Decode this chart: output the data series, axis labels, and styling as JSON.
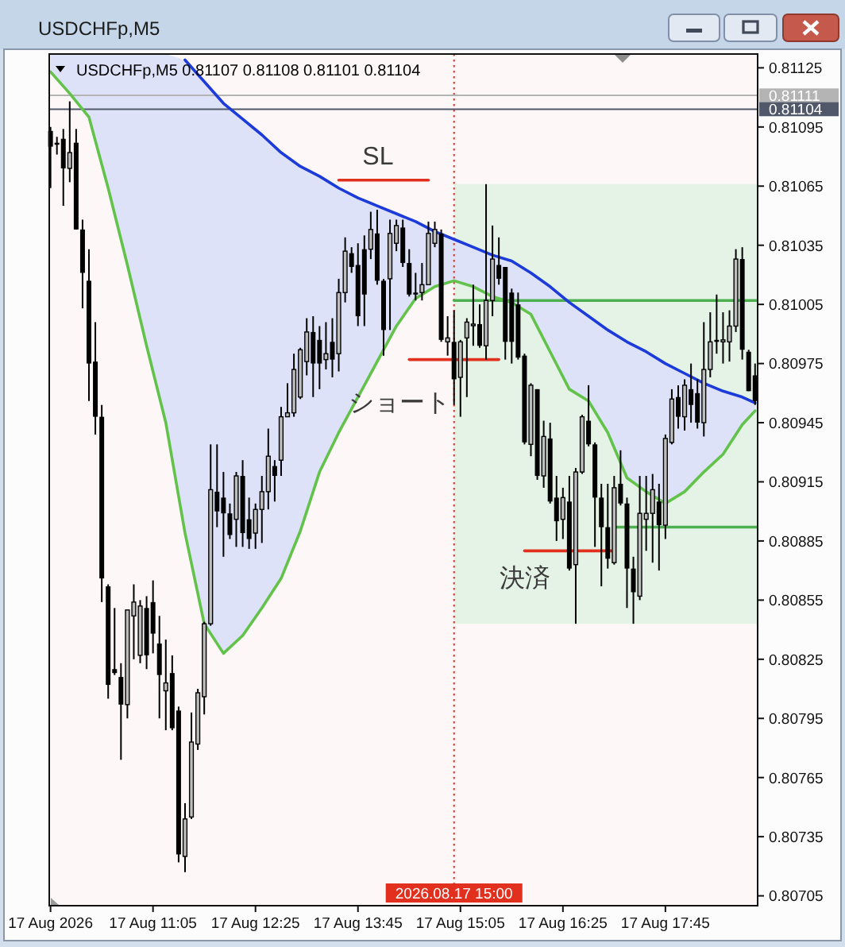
{
  "chart_data": {
    "type": "candlestick",
    "title": "USDCHFp,M5",
    "subtitle": "USDCHFp,M5 0.81107 0.81108 0.81101 0.81104",
    "x": [
      "2026-08-17T09:45",
      "2026-08-17T09:50",
      "2026-08-17T09:55",
      "2026-08-17T10:00",
      "2026-08-17T10:05",
      "2026-08-17T10:10",
      "2026-08-17T10:15",
      "2026-08-17T10:20",
      "2026-08-17T10:25",
      "2026-08-17T10:30",
      "2026-08-17T10:35",
      "2026-08-17T10:40",
      "2026-08-17T10:45",
      "2026-08-17T10:50",
      "2026-08-17T10:55",
      "2026-08-17T11:00",
      "2026-08-17T11:05",
      "2026-08-17T11:10",
      "2026-08-17T11:15",
      "2026-08-17T11:20",
      "2026-08-17T11:25",
      "2026-08-17T11:30",
      "2026-08-17T11:35",
      "2026-08-17T11:40",
      "2026-08-17T11:45",
      "2026-08-17T11:50",
      "2026-08-17T11:55",
      "2026-08-17T12:00",
      "2026-08-17T12:05",
      "2026-08-17T12:10",
      "2026-08-17T12:15",
      "2026-08-17T12:20",
      "2026-08-17T12:25",
      "2026-08-17T12:30",
      "2026-08-17T12:35",
      "2026-08-17T12:40",
      "2026-08-17T12:45",
      "2026-08-17T12:50",
      "2026-08-17T12:55",
      "2026-08-17T13:00",
      "2026-08-17T13:05",
      "2026-08-17T13:10",
      "2026-08-17T13:15",
      "2026-08-17T13:20",
      "2026-08-17T13:25",
      "2026-08-17T13:30",
      "2026-08-17T13:35",
      "2026-08-17T13:40",
      "2026-08-17T13:45",
      "2026-08-17T13:50",
      "2026-08-17T13:55",
      "2026-08-17T14:00",
      "2026-08-17T14:05",
      "2026-08-17T14:10",
      "2026-08-17T14:15",
      "2026-08-17T14:20",
      "2026-08-17T14:25",
      "2026-08-17T14:30",
      "2026-08-17T14:35",
      "2026-08-17T14:40",
      "2026-08-17T14:45",
      "2026-08-17T14:50",
      "2026-08-17T14:55",
      "2026-08-17T15:00",
      "2026-08-17T15:05",
      "2026-08-17T15:10",
      "2026-08-17T15:15",
      "2026-08-17T15:20",
      "2026-08-17T15:25",
      "2026-08-17T15:30",
      "2026-08-17T15:35",
      "2026-08-17T15:40",
      "2026-08-17T15:45",
      "2026-08-17T15:50",
      "2026-08-17T15:55",
      "2026-08-17T16:00",
      "2026-08-17T16:05",
      "2026-08-17T16:10",
      "2026-08-17T16:15",
      "2026-08-17T16:20",
      "2026-08-17T16:25",
      "2026-08-17T16:30",
      "2026-08-17T16:35",
      "2026-08-17T16:40",
      "2026-08-17T16:45",
      "2026-08-17T16:50",
      "2026-08-17T16:55",
      "2026-08-17T17:00",
      "2026-08-17T17:05",
      "2026-08-17T17:10",
      "2026-08-17T17:15",
      "2026-08-17T17:20",
      "2026-08-17T17:25",
      "2026-08-17T17:30",
      "2026-08-17T17:35",
      "2026-08-17T17:40",
      "2026-08-17T17:45",
      "2026-08-17T17:50",
      "2026-08-17T17:55",
      "2026-08-17T18:00",
      "2026-08-17T18:05",
      "2026-08-17T18:10",
      "2026-08-17T18:15",
      "2026-08-17T18:20",
      "2026-08-17T18:25",
      "2026-08-17T18:30",
      "2026-08-17T18:35",
      "2026-08-17T18:40",
      "2026-08-17T18:45",
      "2026-08-17T18:50",
      "2026-08-17T18:55"
    ],
    "ohlc": [
      [
        0.81093,
        0.81095,
        0.81064,
        0.81085
      ],
      [
        0.81087,
        0.8109,
        0.81081,
        0.81086
      ],
      [
        0.81089,
        0.81094,
        0.81055,
        0.81074
      ],
      [
        0.81074,
        0.81108,
        0.81067,
        0.81082
      ],
      [
        0.81087,
        0.81094,
        0.81043,
        0.81043
      ],
      [
        0.81043,
        0.81048,
        0.81003,
        0.81021
      ],
      [
        0.81017,
        0.81033,
        0.80956,
        0.80975
      ],
      [
        0.80976,
        0.80996,
        0.80939,
        0.80948
      ],
      [
        0.80948,
        0.80954,
        0.80854,
        0.80866
      ],
      [
        0.80862,
        0.80863,
        0.80805,
        0.80812
      ],
      [
        0.8082,
        0.80851,
        0.80817,
        0.80818
      ],
      [
        0.80816,
        0.80823,
        0.80774,
        0.80802
      ],
      [
        0.80802,
        0.8085,
        0.80795,
        0.8085
      ],
      [
        0.80847,
        0.80863,
        0.80825,
        0.80854
      ],
      [
        0.80827,
        0.80855,
        0.80823,
        0.80852
      ],
      [
        0.80851,
        0.80857,
        0.8082,
        0.80827
      ],
      [
        0.80854,
        0.80865,
        0.80828,
        0.80838
      ],
      [
        0.80833,
        0.80847,
        0.80795,
        0.80817
      ],
      [
        0.80809,
        0.80835,
        0.80789,
        0.80813
      ],
      [
        0.80818,
        0.80827,
        0.80789,
        0.8079
      ],
      [
        0.80799,
        0.80801,
        0.80722,
        0.80726
      ],
      [
        0.80725,
        0.80752,
        0.80717,
        0.80744
      ],
      [
        0.80745,
        0.80798,
        0.80744,
        0.80783
      ],
      [
        0.80782,
        0.8081,
        0.80779,
        0.80808
      ],
      [
        0.80806,
        0.80844,
        0.80797,
        0.80843
      ],
      [
        0.80843,
        0.80934,
        0.80842,
        0.80911
      ],
      [
        0.8091,
        0.80934,
        0.80892,
        0.809
      ],
      [
        0.80907,
        0.8092,
        0.80877,
        0.80899
      ],
      [
        0.80899,
        0.80904,
        0.80886,
        0.80888
      ],
      [
        0.80896,
        0.8092,
        0.80882,
        0.80918
      ],
      [
        0.80918,
        0.80926,
        0.80882,
        0.80889
      ],
      [
        0.80896,
        0.80907,
        0.80881,
        0.80886
      ],
      [
        0.80889,
        0.80904,
        0.80881,
        0.80901
      ],
      [
        0.80901,
        0.80918,
        0.80884,
        0.8091
      ],
      [
        0.8091,
        0.80942,
        0.80901,
        0.80928
      ],
      [
        0.80923,
        0.80926,
        0.80905,
        0.80918
      ],
      [
        0.80926,
        0.80953,
        0.80918,
        0.80948
      ],
      [
        0.80948,
        0.80965,
        0.80948,
        0.8095
      ],
      [
        0.8095,
        0.8098,
        0.80948,
        0.80972
      ],
      [
        0.80958,
        0.80983,
        0.80957,
        0.80982
      ],
      [
        0.80976,
        0.80998,
        0.80969,
        0.80991
      ],
      [
        0.80991,
        0.80999,
        0.80958,
        0.80975
      ],
      [
        0.80987,
        0.80994,
        0.80962,
        0.80975
      ],
      [
        0.80977,
        0.80996,
        0.80972,
        0.8098
      ],
      [
        0.80986,
        0.80998,
        0.80968,
        0.80977
      ],
      [
        0.8098,
        0.81018,
        0.80971,
        0.81011
      ],
      [
        0.81011,
        0.81039,
        0.81006,
        0.81032
      ],
      [
        0.81031,
        0.81034,
        0.81021,
        0.81024
      ],
      [
        0.81025,
        0.81036,
        0.80994,
        0.80999
      ],
      [
        0.81033,
        0.8104,
        0.80994,
        0.8101
      ],
      [
        0.81033,
        0.81052,
        0.81028,
        0.81043
      ],
      [
        0.81041,
        0.81053,
        0.81015,
        0.81017
      ],
      [
        0.81017,
        0.81018,
        0.80979,
        0.80992
      ],
      [
        0.81018,
        0.81048,
        0.80992,
        0.81041
      ],
      [
        0.81036,
        0.81048,
        0.81032,
        0.81045
      ],
      [
        0.81044,
        0.81048,
        0.81024,
        0.81026
      ],
      [
        0.81026,
        0.81033,
        0.81009,
        0.8101
      ],
      [
        0.81011,
        0.81021,
        0.81007,
        0.8101
      ],
      [
        0.81011,
        0.81026,
        0.81007,
        0.81015
      ],
      [
        0.81015,
        0.81047,
        0.81015,
        0.81041
      ],
      [
        0.81036,
        0.81047,
        0.81034,
        0.81043
      ],
      [
        0.81041,
        0.81043,
        0.80986,
        0.80987
      ],
      [
        0.80986,
        0.80999,
        0.80979,
        0.80988
      ],
      [
        0.80986,
        0.81002,
        0.80954,
        0.80967
      ],
      [
        0.80968,
        0.80987,
        0.80948,
        0.80986
      ],
      [
        0.80988,
        0.80998,
        0.80958,
        0.80996
      ],
      [
        0.80995,
        0.81015,
        0.80984,
        0.80995
      ],
      [
        0.80995,
        0.81005,
        0.80983,
        0.80984
      ],
      [
        0.80984,
        0.81066,
        0.80977,
        0.81007
      ],
      [
        0.81007,
        0.81045,
        0.80999,
        0.81028
      ],
      [
        0.81025,
        0.81039,
        0.81015,
        0.81018
      ],
      [
        0.81024,
        0.81024,
        0.80977,
        0.80986
      ],
      [
        0.81011,
        0.81013,
        0.80975,
        0.80986
      ],
      [
        0.81005,
        0.81011,
        0.80977,
        0.80978
      ],
      [
        0.80979,
        0.8098,
        0.80934,
        0.80935
      ],
      [
        0.80934,
        0.80965,
        0.80928,
        0.80964
      ],
      [
        0.80962,
        0.80962,
        0.80916,
        0.80918
      ],
      [
        0.80918,
        0.80946,
        0.80912,
        0.80938
      ],
      [
        0.80937,
        0.80945,
        0.80904,
        0.80905
      ],
      [
        0.80907,
        0.80918,
        0.80885,
        0.80895
      ],
      [
        0.80896,
        0.80912,
        0.80886,
        0.80907
      ],
      [
        0.80905,
        0.80918,
        0.8087,
        0.80871
      ],
      [
        0.80873,
        0.80922,
        0.80843,
        0.8092
      ],
      [
        0.8092,
        0.80949,
        0.80919,
        0.80948
      ],
      [
        0.80946,
        0.80964,
        0.80933,
        0.80934
      ],
      [
        0.80934,
        0.80935,
        0.80882,
        0.80907
      ],
      [
        0.80907,
        0.80914,
        0.80862,
        0.80892
      ],
      [
        0.80892,
        0.80914,
        0.80871,
        0.80876
      ],
      [
        0.80874,
        0.80918,
        0.80873,
        0.80912
      ],
      [
        0.80914,
        0.80931,
        0.80903,
        0.80904
      ],
      [
        0.80904,
        0.80907,
        0.80851,
        0.80871
      ],
      [
        0.80871,
        0.80877,
        0.80843,
        0.80859
      ],
      [
        0.80857,
        0.80918,
        0.80855,
        0.80899
      ],
      [
        0.80896,
        0.80918,
        0.8088,
        0.80899
      ],
      [
        0.80899,
        0.80919,
        0.80874,
        0.80911
      ],
      [
        0.80905,
        0.80914,
        0.8087,
        0.80893
      ],
      [
        0.80893,
        0.80939,
        0.80886,
        0.80937
      ],
      [
        0.80935,
        0.80962,
        0.80934,
        0.80957
      ],
      [
        0.80958,
        0.80964,
        0.80942,
        0.80948
      ],
      [
        0.80948,
        0.80967,
        0.80941,
        0.80964
      ],
      [
        0.80962,
        0.80975,
        0.80945,
        0.80954
      ],
      [
        0.8096,
        0.80967,
        0.80942,
        0.80945
      ],
      [
        0.80945,
        0.80996,
        0.80938,
        0.80972
      ],
      [
        0.80972,
        0.81001,
        0.80968,
        0.80986
      ],
      [
        0.80987,
        0.8101,
        0.8098,
        0.80986
      ],
      [
        0.80986,
        0.81001,
        0.80975,
        0.80987
      ],
      [
        0.80986,
        0.81002,
        0.80976,
        0.80994
      ],
      [
        0.80994,
        0.81033,
        0.80991,
        0.81028
      ],
      [
        0.81028,
        0.81034,
        0.80977,
        0.80982
      ],
      [
        0.80981,
        0.80982,
        0.80961,
        0.80961
      ],
      [
        0.80969,
        0.80975,
        0.80954,
        0.80956
      ]
    ],
    "xlim": [
      "2026-08-17T09:44",
      "2026-08-17T18:57"
    ],
    "xticks": [
      {
        "value": "2026-08-17T09:45",
        "label": "17 Aug 2026"
      },
      {
        "value": "2026-08-17T11:05",
        "label": "17 Aug 11:05"
      },
      {
        "value": "2026-08-17T12:25",
        "label": "17 Aug 12:25"
      },
      {
        "value": "2026-08-17T13:45",
        "label": "17 Aug 13:45"
      },
      {
        "value": "2026-08-17T15:05",
        "label": "17 Aug 15:05"
      },
      {
        "value": "2026-08-17T16:25",
        "label": "17 Aug 16:25"
      },
      {
        "value": "2026-08-17T17:45",
        "label": "17 Aug 17:45"
      }
    ],
    "ylim": [
      0.807,
      0.81132
    ],
    "yticks": [
      0.81125,
      0.81095,
      0.81065,
      0.81035,
      0.81005,
      0.80975,
      0.80945,
      0.80915,
      0.80885,
      0.80855,
      0.80825,
      0.80795,
      0.80765,
      0.80735,
      0.80705
    ],
    "series": [
      {
        "type": "line",
        "color": "#4caf50",
        "x": [
          "2026-08-17T15:00",
          "2026-08-17T18:57"
        ],
        "values": [
          0.81007,
          0.81007
        ],
        "lower": [
          0.80843,
          0.80843
        ],
        "upper": [
          0.81066,
          0.81066
        ]
      },
      {
        "type": "line",
        "color": "#1d3bd8",
        "x": [
          "2026-08-17T09:45",
          "2026-08-17T10:00",
          "2026-08-17T10:15",
          "2026-08-17T10:30",
          "2026-08-17T10:45",
          "2026-08-17T11:00",
          "2026-08-17T11:15",
          "2026-08-17T11:30",
          "2026-08-17T11:45",
          "2026-08-17T12:00",
          "2026-08-17T12:15",
          "2026-08-17T12:30",
          "2026-08-17T12:45",
          "2026-08-17T13:00",
          "2026-08-17T13:15",
          "2026-08-17T13:30",
          "2026-08-17T13:45",
          "2026-08-17T14:00",
          "2026-08-17T14:15",
          "2026-08-17T14:30",
          "2026-08-17T14:45",
          "2026-08-17T15:00",
          "2026-08-17T15:15",
          "2026-08-17T15:30",
          "2026-08-17T15:45",
          "2026-08-17T16:00",
          "2026-08-17T16:15",
          "2026-08-17T16:30",
          "2026-08-17T16:45",
          "2026-08-17T17:00",
          "2026-08-17T17:15",
          "2026-08-17T17:30",
          "2026-08-17T17:45",
          "2026-08-17T18:00",
          "2026-08-17T18:15",
          "2026-08-17T18:30",
          "2026-08-17T18:45",
          "2026-08-17T18:55"
        ],
        "values": [
          null,
          null,
          null,
          null,
          null,
          null,
          null,
          0.81129,
          0.81118,
          0.81107,
          0.81099,
          0.81091,
          0.81082,
          0.81075,
          0.8107,
          0.81064,
          0.81059,
          0.81055,
          0.81051,
          0.81047,
          0.81042,
          0.81038,
          0.81034,
          0.8103,
          0.81027,
          0.81021,
          0.81014,
          0.81006,
          0.80999,
          0.80992,
          0.80986,
          0.80981,
          0.80975,
          0.8097,
          0.80965,
          0.80961,
          0.80958,
          0.80955
        ],
        "upper": [
          0.81132,
          0.81132,
          0.81132,
          0.81132,
          0.81132,
          0.81132,
          0.81132,
          0.81129,
          0.81118,
          0.81107,
          0.81099,
          0.81091,
          0.81082,
          0.81075,
          0.8107,
          0.81064,
          0.81059,
          0.81055,
          0.81051,
          0.81047,
          0.81042,
          0.81038,
          0.81034,
          0.8103,
          0.81027,
          0.81021,
          0.81014,
          0.81006,
          0.80999,
          0.80992,
          0.80986,
          0.80981,
          0.80975,
          0.8097,
          0.80965,
          0.80961,
          0.80958,
          0.80955
        ],
        "lower": [
          0.81123,
          0.81112,
          0.811,
          0.81064,
          0.81025,
          0.80984,
          0.80945,
          0.80889,
          0.80843,
          0.80828,
          0.80837,
          0.80851,
          0.80866,
          0.8089,
          0.8092,
          0.8094,
          0.80958,
          0.80976,
          0.80994,
          0.81008,
          0.81014,
          0.81017,
          0.81014,
          0.81009,
          0.81006,
          0.81,
          0.80981,
          0.80962,
          0.80956,
          0.8094,
          0.80917,
          0.8091,
          0.80904,
          0.8091,
          0.8092,
          0.80929,
          0.80944,
          0.80951
        ]
      },
      {
        "type": "line",
        "color": "#62c24a",
        "x": [
          "2026-08-17T09:45",
          "2026-08-17T10:00",
          "2026-08-17T10:15",
          "2026-08-17T10:30",
          "2026-08-17T10:45",
          "2026-08-17T11:00",
          "2026-08-17T11:15",
          "2026-08-17T11:30",
          "2026-08-17T11:45",
          "2026-08-17T12:00",
          "2026-08-17T12:15",
          "2026-08-17T12:30",
          "2026-08-17T12:45",
          "2026-08-17T13:00",
          "2026-08-17T13:15",
          "2026-08-17T13:30",
          "2026-08-17T13:45",
          "2026-08-17T14:00",
          "2026-08-17T14:15",
          "2026-08-17T14:30",
          "2026-08-17T14:45",
          "2026-08-17T15:00",
          "2026-08-17T15:15",
          "2026-08-17T15:30",
          "2026-08-17T15:45",
          "2026-08-17T16:00",
          "2026-08-17T16:15",
          "2026-08-17T16:30",
          "2026-08-17T16:45",
          "2026-08-17T17:00",
          "2026-08-17T17:15",
          "2026-08-17T17:30",
          "2026-08-17T17:45",
          "2026-08-17T18:00",
          "2026-08-17T18:15",
          "2026-08-17T18:30",
          "2026-08-17T18:45",
          "2026-08-17T18:55"
        ],
        "values": [
          0.81123,
          0.81112,
          0.811,
          0.81064,
          0.81025,
          0.80984,
          0.80945,
          0.80889,
          0.80843,
          0.80828,
          0.80837,
          0.80851,
          0.80866,
          0.8089,
          0.8092,
          0.8094,
          0.80958,
          0.80976,
          0.80994,
          0.81008,
          0.81014,
          0.81017,
          0.81014,
          0.81009,
          0.81006,
          0.81,
          0.80981,
          0.80962,
          0.80956,
          0.8094,
          0.80917,
          0.8091,
          0.80904,
          0.8091,
          0.8092,
          0.80929,
          0.80944,
          0.80951
        ]
      },
      {
        "type": "line",
        "color": "#e2301e",
        "x": [
          "2026-08-17T13:30",
          "2026-08-17T14:40"
        ],
        "values": [
          0.81068,
          0.81068
        ]
      },
      {
        "type": "line",
        "color": "#e2301e",
        "x": [
          "2026-08-17T14:25",
          "2026-08-17T15:35"
        ],
        "values": [
          0.80977,
          0.80977
        ]
      },
      {
        "type": "line",
        "color": "#e2301e",
        "x": [
          "2026-08-17T15:55",
          "2026-08-17T17:05"
        ],
        "values": [
          0.8088,
          0.8088
        ]
      },
      {
        "type": "line",
        "color": "#4caf50",
        "x": [
          "2026-08-17T17:05",
          "2026-08-17T18:57"
        ],
        "values": [
          0.80892,
          0.80892
        ]
      }
    ],
    "ref_lines": [
      {
        "axis": "x",
        "value": "2026-08-17T15:00",
        "label": "2026.08.17 15:00",
        "color": "#e2301e",
        "line_style": "dotted"
      },
      {
        "axis": "y",
        "value": 0.81111,
        "label": "0.81111",
        "color": "#b4b4b4"
      },
      {
        "axis": "y",
        "value": 0.81104,
        "label": "0.81104",
        "color": "#50586a"
      }
    ],
    "annotations": [
      "SL",
      "ショート",
      "決済"
    ]
  }
}
